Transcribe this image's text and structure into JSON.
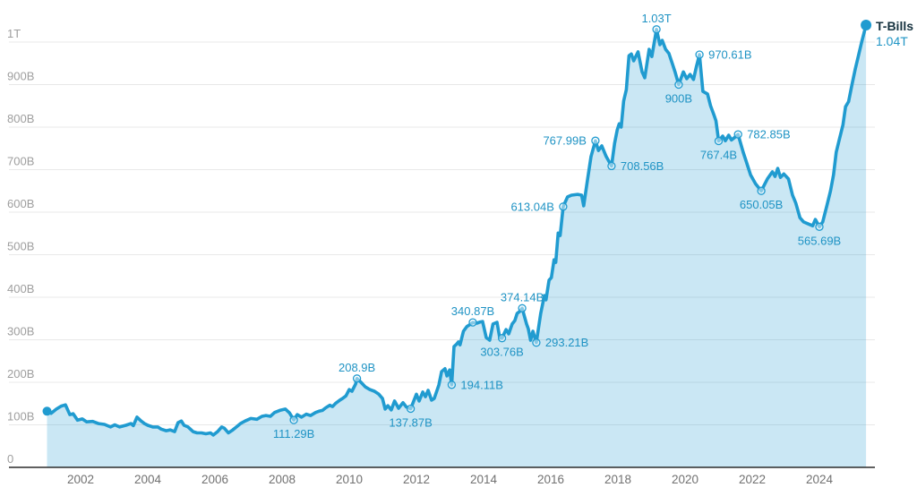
{
  "chart_data": {
    "type": "area",
    "series": [
      {
        "name": "T-Bills",
        "end_label": "1.04T",
        "points": [
          [
            2001.0,
            132
          ],
          [
            2001.12,
            127
          ],
          [
            2001.28,
            137
          ],
          [
            2001.42,
            144
          ],
          [
            2001.55,
            147
          ],
          [
            2001.68,
            124
          ],
          [
            2001.78,
            126
          ],
          [
            2001.91,
            111
          ],
          [
            2002.05,
            114
          ],
          [
            2002.18,
            107
          ],
          [
            2002.36,
            108
          ],
          [
            2002.53,
            103
          ],
          [
            2002.71,
            101
          ],
          [
            2002.89,
            95
          ],
          [
            2003.02,
            100
          ],
          [
            2003.16,
            95
          ],
          [
            2003.35,
            99
          ],
          [
            2003.5,
            103
          ],
          [
            2003.57,
            98
          ],
          [
            2003.68,
            118
          ],
          [
            2003.8,
            109
          ],
          [
            2003.9,
            103
          ],
          [
            2004.0,
            99
          ],
          [
            2004.15,
            95
          ],
          [
            2004.3,
            95
          ],
          [
            2004.4,
            90
          ],
          [
            2004.55,
            86
          ],
          [
            2004.67,
            88
          ],
          [
            2004.8,
            84
          ],
          [
            2004.9,
            105
          ],
          [
            2005.0,
            109
          ],
          [
            2005.08,
            99
          ],
          [
            2005.2,
            95
          ],
          [
            2005.35,
            84
          ],
          [
            2005.47,
            81
          ],
          [
            2005.6,
            81
          ],
          [
            2005.73,
            79
          ],
          [
            2005.87,
            81
          ],
          [
            2005.95,
            76
          ],
          [
            2006.08,
            84
          ],
          [
            2006.2,
            95
          ],
          [
            2006.28,
            92
          ],
          [
            2006.4,
            81
          ],
          [
            2006.53,
            88
          ],
          [
            2006.64,
            95
          ],
          [
            2006.76,
            103
          ],
          [
            2006.9,
            109
          ],
          [
            2007.07,
            115
          ],
          [
            2007.25,
            113
          ],
          [
            2007.4,
            120
          ],
          [
            2007.52,
            122
          ],
          [
            2007.65,
            120
          ],
          [
            2007.78,
            129
          ],
          [
            2007.93,
            134
          ],
          [
            2008.1,
            137
          ],
          [
            2008.22,
            128
          ],
          [
            2008.35,
            111.29
          ],
          [
            2008.45,
            124
          ],
          [
            2008.58,
            118
          ],
          [
            2008.72,
            125
          ],
          [
            2008.85,
            122
          ],
          [
            2009.0,
            129
          ],
          [
            2009.1,
            132
          ],
          [
            2009.2,
            134
          ],
          [
            2009.3,
            140
          ],
          [
            2009.42,
            146
          ],
          [
            2009.5,
            143
          ],
          [
            2009.6,
            151
          ],
          [
            2009.72,
            158
          ],
          [
            2009.8,
            162
          ],
          [
            2009.9,
            168
          ],
          [
            2010.0,
            183
          ],
          [
            2010.08,
            179
          ],
          [
            2010.19,
            196
          ],
          [
            2010.23,
            208.9
          ],
          [
            2010.35,
            200
          ],
          [
            2010.48,
            189
          ],
          [
            2010.61,
            183
          ],
          [
            2010.75,
            179
          ],
          [
            2010.88,
            172
          ],
          [
            2010.99,
            162
          ],
          [
            2011.07,
            137
          ],
          [
            2011.15,
            145
          ],
          [
            2011.25,
            135
          ],
          [
            2011.35,
            156
          ],
          [
            2011.47,
            139
          ],
          [
            2011.6,
            152
          ],
          [
            2011.7,
            142
          ],
          [
            2011.83,
            137.87
          ],
          [
            2012.0,
            172
          ],
          [
            2012.08,
            156
          ],
          [
            2012.19,
            177
          ],
          [
            2012.27,
            166
          ],
          [
            2012.35,
            181
          ],
          [
            2012.45,
            158
          ],
          [
            2012.53,
            162
          ],
          [
            2012.67,
            194
          ],
          [
            2012.75,
            225
          ],
          [
            2012.85,
            232
          ],
          [
            2012.91,
            215
          ],
          [
            2012.99,
            229
          ],
          [
            2013.05,
            194.11
          ],
          [
            2013.12,
            284
          ],
          [
            2013.2,
            290
          ],
          [
            2013.25,
            295
          ],
          [
            2013.3,
            288
          ],
          [
            2013.4,
            320
          ],
          [
            2013.5,
            331
          ],
          [
            2013.6,
            336
          ],
          [
            2013.68,
            340.87
          ],
          [
            2013.8,
            339
          ],
          [
            2013.9,
            342
          ],
          [
            2013.97,
            343
          ],
          [
            2014.08,
            305
          ],
          [
            2014.18,
            299
          ],
          [
            2014.28,
            337
          ],
          [
            2014.4,
            341
          ],
          [
            2014.48,
            305
          ],
          [
            2014.55,
            303.76
          ],
          [
            2014.67,
            324
          ],
          [
            2014.75,
            314
          ],
          [
            2014.85,
            337
          ],
          [
            2014.93,
            345
          ],
          [
            2015.0,
            362
          ],
          [
            2015.07,
            366
          ],
          [
            2015.15,
            374.14
          ],
          [
            2015.28,
            337
          ],
          [
            2015.33,
            326
          ],
          [
            2015.4,
            299
          ],
          [
            2015.47,
            320
          ],
          [
            2015.57,
            293.21
          ],
          [
            2015.7,
            362
          ],
          [
            2015.81,
            404
          ],
          [
            2015.86,
            394
          ],
          [
            2015.95,
            440
          ],
          [
            2016.02,
            446
          ],
          [
            2016.1,
            488
          ],
          [
            2016.15,
            482
          ],
          [
            2016.22,
            551
          ],
          [
            2016.28,
            545
          ],
          [
            2016.37,
            613.04
          ],
          [
            2016.5,
            636
          ],
          [
            2016.62,
            640
          ],
          [
            2016.8,
            642
          ],
          [
            2016.92,
            640
          ],
          [
            2016.98,
            615
          ],
          [
            2017.1,
            678
          ],
          [
            2017.2,
            731
          ],
          [
            2017.33,
            767.99
          ],
          [
            2017.42,
            745
          ],
          [
            2017.52,
            756
          ],
          [
            2017.65,
            731
          ],
          [
            2017.81,
            708.56
          ],
          [
            2017.9,
            762
          ],
          [
            2017.98,
            794
          ],
          [
            2018.04,
            808
          ],
          [
            2018.1,
            800
          ],
          [
            2018.17,
            861
          ],
          [
            2018.25,
            888
          ],
          [
            2018.33,
            968
          ],
          [
            2018.4,
            972
          ],
          [
            2018.47,
            956
          ],
          [
            2018.6,
            977
          ],
          [
            2018.72,
            930
          ],
          [
            2018.8,
            916
          ],
          [
            2018.93,
            983
          ],
          [
            2019.01,
            966
          ],
          [
            2019.15,
            1030
          ],
          [
            2019.25,
            994
          ],
          [
            2019.32,
            1004
          ],
          [
            2019.42,
            983
          ],
          [
            2019.52,
            973
          ],
          [
            2019.62,
            950
          ],
          [
            2019.7,
            930
          ],
          [
            2019.81,
            900
          ],
          [
            2019.95,
            930
          ],
          [
            2020.05,
            914
          ],
          [
            2020.15,
            924
          ],
          [
            2020.25,
            912
          ],
          [
            2020.33,
            940
          ],
          [
            2020.43,
            970.61
          ],
          [
            2020.53,
            884
          ],
          [
            2020.67,
            878
          ],
          [
            2020.76,
            850
          ],
          [
            2020.86,
            829
          ],
          [
            2020.92,
            815
          ],
          [
            2021.0,
            767.4
          ],
          [
            2021.12,
            779
          ],
          [
            2021.2,
            768
          ],
          [
            2021.3,
            781
          ],
          [
            2021.38,
            770
          ],
          [
            2021.48,
            776
          ],
          [
            2021.58,
            782.85
          ],
          [
            2021.73,
            741
          ],
          [
            2021.82,
            720
          ],
          [
            2021.95,
            688
          ],
          [
            2022.1,
            667
          ],
          [
            2022.27,
            650.05
          ],
          [
            2022.45,
            678
          ],
          [
            2022.6,
            695
          ],
          [
            2022.68,
            684
          ],
          [
            2022.76,
            703
          ],
          [
            2022.84,
            682
          ],
          [
            2022.94,
            690
          ],
          [
            2023.08,
            678
          ],
          [
            2023.2,
            640
          ],
          [
            2023.3,
            621
          ],
          [
            2023.42,
            587
          ],
          [
            2023.53,
            577
          ],
          [
            2023.65,
            573
          ],
          [
            2023.8,
            568
          ],
          [
            2023.88,
            583
          ],
          [
            2024.0,
            565.69
          ],
          [
            2024.1,
            577
          ],
          [
            2024.22,
            615
          ],
          [
            2024.33,
            650
          ],
          [
            2024.42,
            688
          ],
          [
            2024.5,
            741
          ],
          [
            2024.6,
            773
          ],
          [
            2024.7,
            805
          ],
          [
            2024.78,
            848
          ],
          [
            2024.87,
            860
          ],
          [
            2024.97,
            900
          ],
          [
            2025.07,
            937
          ],
          [
            2025.16,
            967
          ],
          [
            2025.26,
            1000
          ],
          [
            2025.39,
            1040
          ]
        ]
      }
    ],
    "annotations": [
      {
        "label": "111.29B",
        "year": 2008.35,
        "value": 111.29,
        "pos": "below"
      },
      {
        "label": "208.9B",
        "year": 2010.23,
        "value": 208.9,
        "pos": "above"
      },
      {
        "label": "137.87B",
        "year": 2011.83,
        "value": 137.87,
        "pos": "below"
      },
      {
        "label": "194.11B",
        "year": 2013.05,
        "value": 194.11,
        "pos": "right"
      },
      {
        "label": "340.87B",
        "year": 2013.68,
        "value": 340.87,
        "pos": "above"
      },
      {
        "label": "303.76B",
        "year": 2014.55,
        "value": 303.76,
        "pos": "below"
      },
      {
        "label": "374.14B",
        "year": 2015.15,
        "value": 374.14,
        "pos": "above"
      },
      {
        "label": "293.21B",
        "year": 2015.57,
        "value": 293.21,
        "pos": "right"
      },
      {
        "label": "613.04B",
        "year": 2016.37,
        "value": 613.04,
        "pos": "left"
      },
      {
        "label": "767.99B",
        "year": 2017.33,
        "value": 767.99,
        "pos": "left"
      },
      {
        "label": "708.56B",
        "year": 2017.81,
        "value": 708.56,
        "pos": "right"
      },
      {
        "label": "1.03T",
        "year": 2019.15,
        "value": 1030,
        "pos": "above"
      },
      {
        "label": "900B",
        "year": 2019.81,
        "value": 900,
        "pos": "below"
      },
      {
        "label": "970.61B",
        "year": 2020.43,
        "value": 970.61,
        "pos": "right"
      },
      {
        "label": "767.4B",
        "year": 2021.0,
        "value": 767.4,
        "pos": "below"
      },
      {
        "label": "782.85B",
        "year": 2021.58,
        "value": 782.85,
        "pos": "right"
      },
      {
        "label": "650.05B",
        "year": 2022.27,
        "value": 650.05,
        "pos": "below"
      },
      {
        "label": "565.69B",
        "year": 2024.0,
        "value": 565.69,
        "pos": "below"
      }
    ],
    "x_axis": {
      "ticks": [
        2002,
        2004,
        2006,
        2008,
        2010,
        2012,
        2014,
        2016,
        2018,
        2020,
        2022,
        2024
      ]
    },
    "y_axis": {
      "range": [
        0,
        1100
      ],
      "ticks": [
        [
          0,
          "0"
        ],
        [
          100,
          "100B"
        ],
        [
          200,
          "200B"
        ],
        [
          300,
          "300B"
        ],
        [
          400,
          "400B"
        ],
        [
          500,
          "500B"
        ],
        [
          600,
          "600B"
        ],
        [
          700,
          "700B"
        ],
        [
          800,
          "800B"
        ],
        [
          900,
          "900B"
        ],
        [
          1000,
          "1T"
        ]
      ]
    },
    "x_range": [
      2001,
      2025.65
    ],
    "grid": true,
    "legend_position": "end-of-line",
    "colors": {
      "line": "#209bd0",
      "fill": "rgba(32,155,208,0.24)",
      "annotation": "#1f93c4",
      "end_label_name": "#16323f",
      "end_label_value": "#2095c5",
      "grid": "#e8e8e8",
      "axis": "#2b2b2b",
      "y_tick": "#9e9e9e",
      "x_tick": "#717171"
    }
  }
}
